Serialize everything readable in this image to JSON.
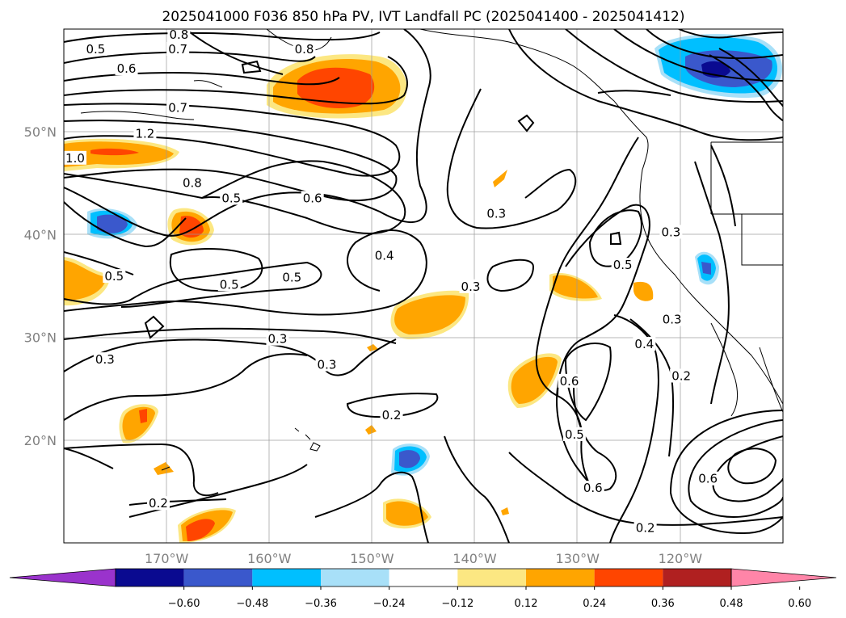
{
  "title": "2025041000 F036 850 hPa PV, IVT Landfall PC (2025041400 - 2025041412)",
  "map": {
    "lon_range": [
      -180,
      -110
    ],
    "lat_range": [
      10,
      60
    ],
    "lon_ticks": [
      {
        "lon": -170,
        "label": "170°W"
      },
      {
        "lon": -160,
        "label": "160°W"
      },
      {
        "lon": -150,
        "label": "150°W"
      },
      {
        "lon": -140,
        "label": "140°W"
      },
      {
        "lon": -130,
        "label": "130°W"
      },
      {
        "lon": -120,
        "label": "120°W"
      }
    ],
    "lat_ticks": [
      {
        "lat": 50,
        "label": "50°N"
      },
      {
        "lat": 40,
        "label": "40°N"
      },
      {
        "lat": 30,
        "label": "30°N"
      },
      {
        "lat": 20,
        "label": "20°N"
      }
    ],
    "grid": true,
    "contour_labels": [
      {
        "text": "0.8",
        "lon": -168.8,
        "lat": 59.2
      },
      {
        "text": "0.7",
        "lon": -168.9,
        "lat": 57.8
      },
      {
        "text": "0.5",
        "lon": -176.9,
        "lat": 57.8
      },
      {
        "text": "0.6",
        "lon": -173.9,
        "lat": 55.9
      },
      {
        "text": "0.7",
        "lon": -168.9,
        "lat": 52.1
      },
      {
        "text": "0.8",
        "lon": -156.6,
        "lat": 57.8
      },
      {
        "text": "1.2",
        "lon": -172.1,
        "lat": 49.6
      },
      {
        "text": "1.0",
        "lon": -178.9,
        "lat": 47.2
      },
      {
        "text": "0.8",
        "lon": -167.5,
        "lat": 44.8
      },
      {
        "text": "0.5",
        "lon": -163.7,
        "lat": 43.3
      },
      {
        "text": "0.6",
        "lon": -155.8,
        "lat": 43.3
      },
      {
        "text": "0.3",
        "lon": -137.9,
        "lat": 41.8
      },
      {
        "text": "0.4",
        "lon": -148.8,
        "lat": 37.7
      },
      {
        "text": "0.5",
        "lon": -175.1,
        "lat": 35.7
      },
      {
        "text": "0.5",
        "lon": -157.8,
        "lat": 35.6
      },
      {
        "text": "0.5",
        "lon": -163.9,
        "lat": 34.9
      },
      {
        "text": "0.3",
        "lon": -140.4,
        "lat": 34.7
      },
      {
        "text": "0.5",
        "lon": -125.6,
        "lat": 36.8
      },
      {
        "text": "0.3",
        "lon": -120.9,
        "lat": 40.0
      },
      {
        "text": "0.3",
        "lon": -159.2,
        "lat": 29.6
      },
      {
        "text": "0.3",
        "lon": -176.0,
        "lat": 27.6
      },
      {
        "text": "0.3",
        "lon": -154.4,
        "lat": 27.1
      },
      {
        "text": "0.4",
        "lon": -123.5,
        "lat": 29.1
      },
      {
        "text": "0.3",
        "lon": -120.8,
        "lat": 31.5
      },
      {
        "text": "0.6",
        "lon": -130.8,
        "lat": 25.5
      },
      {
        "text": "0.2",
        "lon": -148.1,
        "lat": 22.2
      },
      {
        "text": "0.5",
        "lon": -130.3,
        "lat": 20.3
      },
      {
        "text": "0.2",
        "lon": -119.9,
        "lat": 26.0
      },
      {
        "text": "0.6",
        "lon": -117.3,
        "lat": 16.0
      },
      {
        "text": "0.6",
        "lon": -128.5,
        "lat": 15.1
      },
      {
        "text": "0.2",
        "lon": -170.8,
        "lat": 13.6
      },
      {
        "text": "0.2",
        "lon": -123.4,
        "lat": 11.2
      }
    ]
  },
  "colorbar": {
    "ticks": [
      "−0.60",
      "−0.48",
      "−0.36",
      "−0.24",
      "−0.12",
      "0.12",
      "0.24",
      "0.36",
      "0.48",
      "0.60"
    ],
    "colors": [
      "#9a33cc",
      "#0a0a90",
      "#3a58cc",
      "#00bfff",
      "#a8e0f8",
      "#ffffff",
      "#fce782",
      "#ffa500",
      "#ff4500",
      "#b02020",
      "#ff85a8"
    ]
  }
}
